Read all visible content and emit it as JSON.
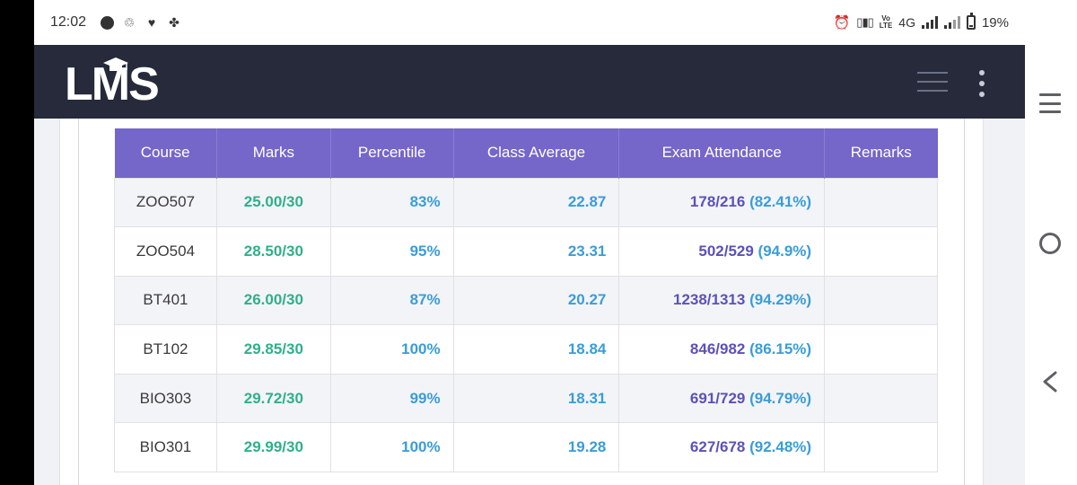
{
  "status_bar": {
    "time": "12:02",
    "network": "4G",
    "battery_text": "19%",
    "battery_level": 0.19
  },
  "header": {
    "logo_text": "LMS"
  },
  "table": {
    "columns": [
      "Course",
      "Marks",
      "Percentile",
      "Class Average",
      "Exam Attendance",
      "Remarks"
    ],
    "rows": [
      {
        "course": "ZOO507",
        "marks": "25.00/30",
        "percentile": "83%",
        "class_average": "22.87",
        "attendance": "178/216",
        "attendance_pct": "(82.41%)",
        "remarks": ""
      },
      {
        "course": "ZOO504",
        "marks": "28.50/30",
        "percentile": "95%",
        "class_average": "23.31",
        "attendance": "502/529",
        "attendance_pct": "(94.9%)",
        "remarks": ""
      },
      {
        "course": "BT401",
        "marks": "26.00/30",
        "percentile": "87%",
        "class_average": "20.27",
        "attendance": "1238/1313",
        "attendance_pct": "(94.29%)",
        "remarks": ""
      },
      {
        "course": "BT102",
        "marks": "29.85/30",
        "percentile": "100%",
        "class_average": "18.84",
        "attendance": "846/982",
        "attendance_pct": "(86.15%)",
        "remarks": ""
      },
      {
        "course": "BIO303",
        "marks": "29.72/30",
        "percentile": "99%",
        "class_average": "18.31",
        "attendance": "691/729",
        "attendance_pct": "(94.79%)",
        "remarks": ""
      },
      {
        "course": "BIO301",
        "marks": "29.99/30",
        "percentile": "100%",
        "class_average": "19.28",
        "attendance": "627/678",
        "attendance_pct": "(92.48%)",
        "remarks": ""
      }
    ]
  },
  "icons": {
    "status": [
      "messenger-icon",
      "sync-icon",
      "heart-icon",
      "app-icon",
      "alarm-icon",
      "vibrate-icon",
      "volte-icon",
      "signal-icon",
      "battery-icon"
    ],
    "header": [
      "graduation-cap-icon",
      "hamburger-menu-icon",
      "more-vert-icon"
    ],
    "nav": [
      "recents-icon",
      "home-icon",
      "back-icon"
    ]
  },
  "colors": {
    "header_bg": "#262a3a",
    "table_header_bg": "#7566c9",
    "marks": "#2fb08a",
    "percentile": "#3a9dd8",
    "attendance": "#5b52b8"
  }
}
